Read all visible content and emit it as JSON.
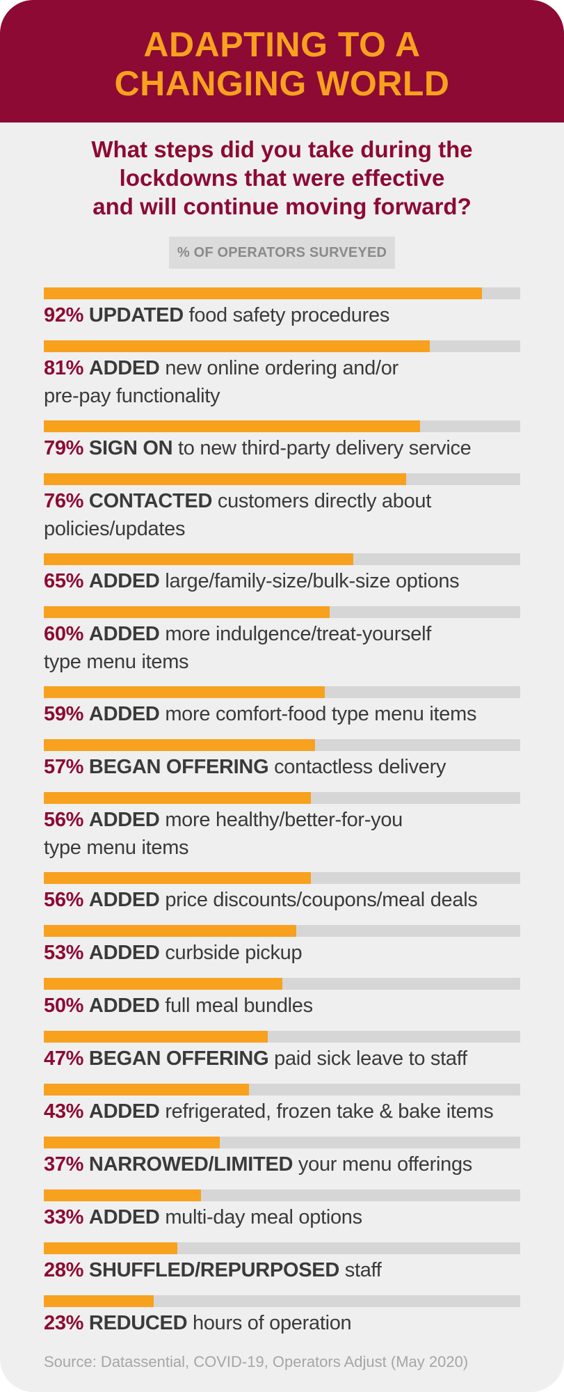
{
  "title_line1": "ADAPTING TO A",
  "title_line2": "CHANGING WORLD",
  "subtitle_line1": "What steps did you take during the",
  "subtitle_line2": "lockdowns that were effective",
  "subtitle_line3": "and will continue moving forward?",
  "axis_label": "% OF OPERATORS SURVEYED",
  "source": "Source: Datassential, COVID-19, Operators Adjust (May 2020)",
  "colors": {
    "header": "#8c0a34",
    "accent": "#f7a11f",
    "track": "#d6d6d6",
    "background": "#efefef"
  },
  "chart_data": {
    "type": "bar",
    "orientation": "horizontal",
    "xlim": [
      0,
      100
    ],
    "title": "What steps did you take during the lockdowns that were effective and will continue moving forward?",
    "xlabel": "% OF OPERATORS SURVEYED",
    "items": [
      {
        "value": 92,
        "pct": "92%",
        "verb": "UPDATED",
        "line1": "food safety procedures",
        "line2": ""
      },
      {
        "value": 81,
        "pct": "81%",
        "verb": "ADDED",
        "line1": "new online ordering and/or",
        "line2": "pre-pay functionality"
      },
      {
        "value": 79,
        "pct": "79%",
        "verb": "SIGN ON",
        "line1": "to new third-party delivery service",
        "line2": ""
      },
      {
        "value": 76,
        "pct": "76%",
        "verb": "CONTACTED",
        "line1": "customers directly about",
        "line2": "policies/updates"
      },
      {
        "value": 65,
        "pct": "65%",
        "verb": "ADDED",
        "line1": "large/family-size/bulk-size options",
        "line2": ""
      },
      {
        "value": 60,
        "pct": "60%",
        "verb": "ADDED",
        "line1": "more indulgence/treat-yourself",
        "line2": "type menu items"
      },
      {
        "value": 59,
        "pct": "59%",
        "verb": "ADDED",
        "line1": "more comfort-food type menu items",
        "line2": ""
      },
      {
        "value": 57,
        "pct": "57%",
        "verb": "BEGAN OFFERING",
        "line1": "contactless delivery",
        "line2": ""
      },
      {
        "value": 56,
        "pct": "56%",
        "verb": "ADDED",
        "line1": "more healthy/better-for-you",
        "line2": "type menu items"
      },
      {
        "value": 56,
        "pct": "56%",
        "verb": "ADDED",
        "line1": "price discounts/coupons/meal deals",
        "line2": ""
      },
      {
        "value": 53,
        "pct": "53%",
        "verb": "ADDED",
        "line1": "curbside pickup",
        "line2": ""
      },
      {
        "value": 50,
        "pct": "50%",
        "verb": "ADDED",
        "line1": "full meal bundles",
        "line2": ""
      },
      {
        "value": 47,
        "pct": "47%",
        "verb": "BEGAN OFFERING",
        "line1": "paid sick leave to staff",
        "line2": ""
      },
      {
        "value": 43,
        "pct": "43%",
        "verb": "ADDED",
        "line1": "refrigerated, frozen take & bake items",
        "line2": ""
      },
      {
        "value": 37,
        "pct": "37%",
        "verb": "NARROWED/LIMITED",
        "line1": "your menu offerings",
        "line2": ""
      },
      {
        "value": 33,
        "pct": "33%",
        "verb": "ADDED",
        "line1": "multi-day meal options",
        "line2": ""
      },
      {
        "value": 28,
        "pct": "28%",
        "verb": "SHUFFLED/REPURPOSED",
        "line1": "staff",
        "line2": ""
      },
      {
        "value": 23,
        "pct": "23%",
        "verb": "REDUCED",
        "line1": "hours of operation",
        "line2": ""
      }
    ]
  }
}
